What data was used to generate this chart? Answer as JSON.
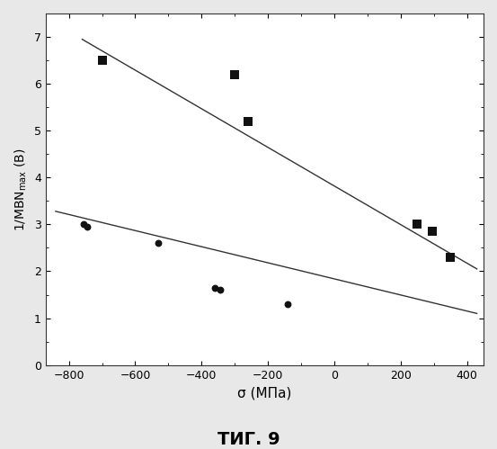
{
  "xlabel": "σ (МПа)",
  "ylabel": "1/MBNₘₐₓ (В)",
  "xlim": [
    -870,
    450
  ],
  "ylim": [
    0,
    7.5
  ],
  "xticks": [
    -800,
    -600,
    -400,
    -200,
    0,
    200,
    400
  ],
  "yticks": [
    0,
    1,
    2,
    3,
    4,
    5,
    6,
    7
  ],
  "upper_scatter_x": [
    -700,
    -300,
    -260,
    250,
    295,
    350
  ],
  "upper_scatter_y": [
    6.5,
    6.2,
    5.2,
    3.0,
    2.85,
    2.3
  ],
  "upper_line_x": [
    -760,
    430
  ],
  "upper_line_y": [
    6.95,
    2.05
  ],
  "lower_scatter_x": [
    -755,
    -745,
    -530,
    -360,
    -345,
    -140
  ],
  "lower_scatter_y": [
    3.0,
    2.95,
    2.6,
    1.65,
    1.6,
    1.3
  ],
  "lower_line_x": [
    -840,
    430
  ],
  "lower_line_y": [
    3.28,
    1.1
  ],
  "scatter_color": "#111111",
  "line_color": "#333333",
  "background_color": "#ffffff",
  "fig_bg_color": "#e8e8e8",
  "figsize": [
    5.53,
    4.99
  ],
  "dpi": 100,
  "fig_label": "ΤИГ. 9"
}
